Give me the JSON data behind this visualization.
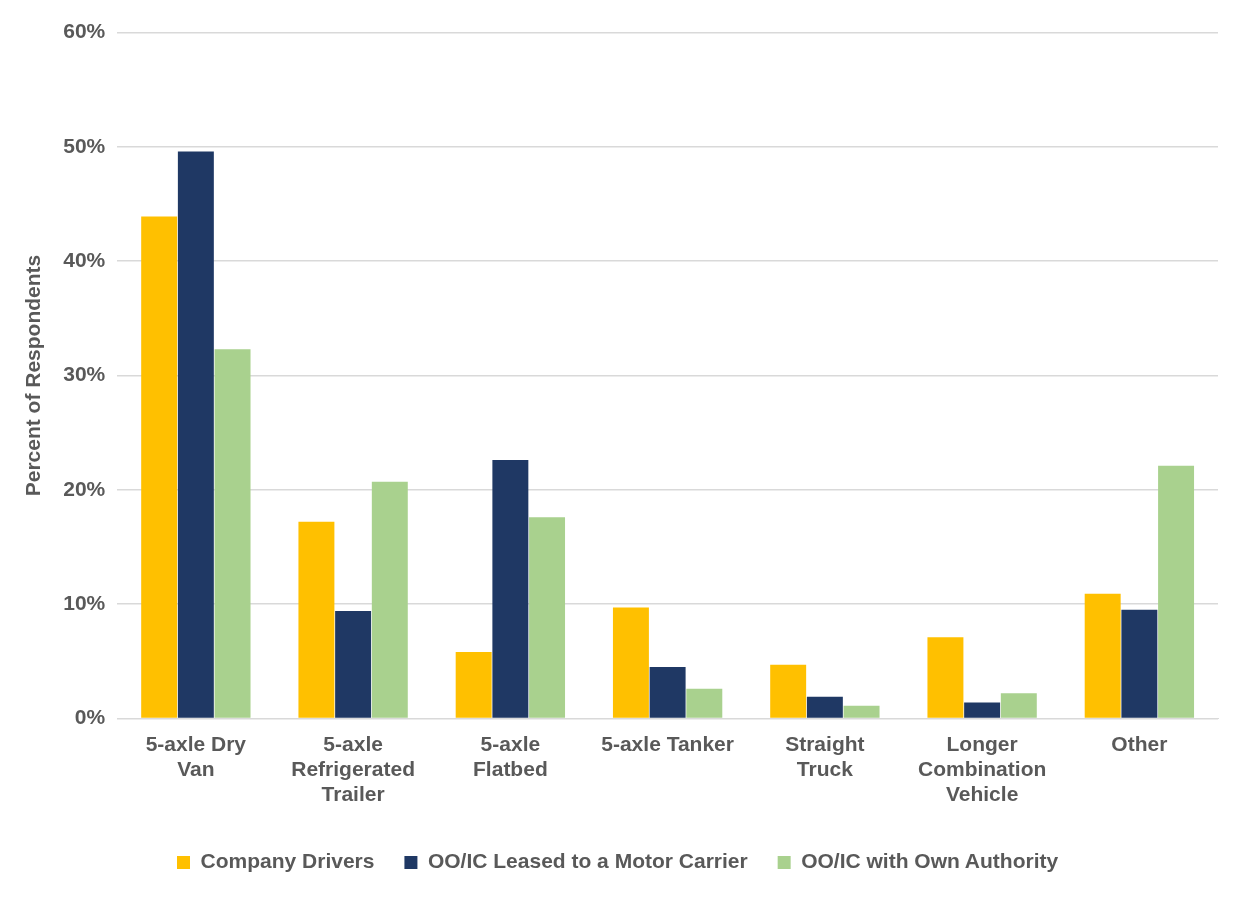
{
  "chart_data": {
    "type": "bar",
    "ylabel": "Percent of Respondents",
    "categories": [
      "5-axle Dry Van",
      "5-axle Refrigerated Trailer",
      "5-axle Flatbed",
      "5-axle Tanker",
      "Straight Truck",
      "Longer Combination Vehicle",
      "Other"
    ],
    "series": [
      {
        "name": "Company Drivers",
        "color": "#ffc000",
        "values": [
          43.9,
          17.2,
          5.8,
          9.7,
          4.7,
          7.1,
          10.9
        ]
      },
      {
        "name": "OO/IC Leased to a Motor Carrier",
        "color": "#1f3864",
        "values": [
          49.6,
          9.4,
          22.6,
          4.5,
          1.9,
          1.4,
          9.5
        ]
      },
      {
        "name": "OO/IC with Own Authority",
        "color": "#a9d18e",
        "values": [
          32.3,
          20.7,
          17.6,
          2.6,
          1.1,
          2.2,
          22.1
        ]
      }
    ],
    "ylim": [
      0,
      60
    ],
    "yticks": [
      {
        "value": 0,
        "label": "0%"
      },
      {
        "value": 10,
        "label": "10%"
      },
      {
        "value": 20,
        "label": "20%"
      },
      {
        "value": 30,
        "label": "30%"
      },
      {
        "value": 40,
        "label": "40%"
      },
      {
        "value": 50,
        "label": "50%"
      },
      {
        "value": 60,
        "label": "60%"
      }
    ],
    "grid": "y",
    "legend": "bottom"
  }
}
